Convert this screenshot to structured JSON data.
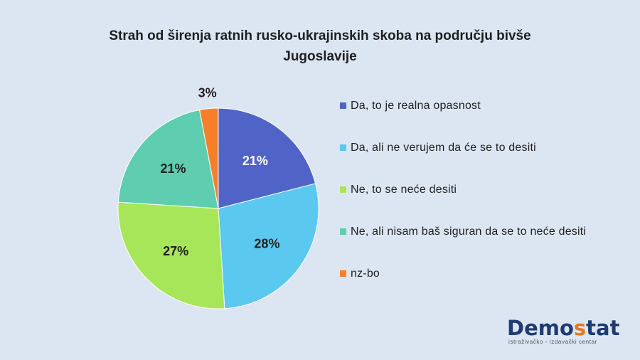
{
  "chart_data": {
    "type": "pie",
    "title": "Strah od širenja ratnih rusko-ukrajinskih skoba na području bivše Jugoslavije",
    "legend_position": "right",
    "slices": [
      {
        "label": "Da, to je realna opasnost",
        "value": 21,
        "value_label": "21%",
        "color": "#5064c8"
      },
      {
        "label": "Da, ali ne verujem da će se to desiti",
        "value": 28,
        "value_label": "28%",
        "color": "#5bc8f0"
      },
      {
        "label": "Ne, to se neće desiti",
        "value": 27,
        "value_label": "27%",
        "color": "#a8e659"
      },
      {
        "label": "Ne, ali nisam baš siguran da se to neće desiti",
        "value": 21,
        "value_label": "21%",
        "color": "#5ecdb0"
      },
      {
        "label": "nz-bo",
        "value": 3,
        "value_label": "3%",
        "color": "#f57f2a"
      }
    ]
  },
  "logo": {
    "text_main_a": "Demo",
    "text_main_b": "s",
    "text_main_c": "tat",
    "text_sub": "istraživačko - izdavački centar"
  }
}
